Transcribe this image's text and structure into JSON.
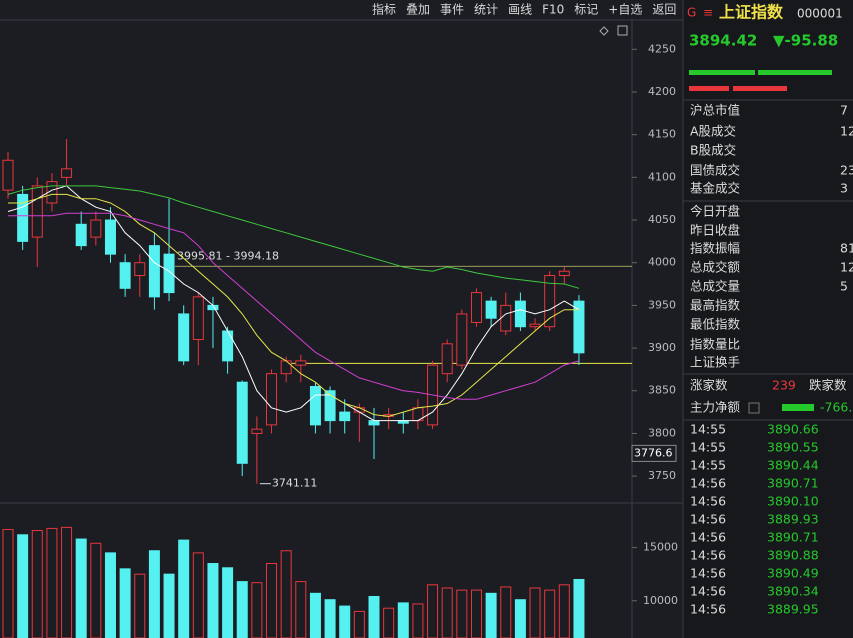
{
  "toolbar": [
    "指标",
    "叠加",
    "事件",
    "统计",
    "画线",
    "F10",
    "标记",
    "+自选",
    "返回"
  ],
  "chart_data": {
    "type": "candlestick",
    "open": [
      4085,
      4080,
      4030,
      4070,
      4100,
      4045,
      4030,
      4050,
      4000,
      3985,
      4020,
      4010,
      3940,
      3910,
      3950,
      3920,
      3860,
      3800,
      3810,
      3870,
      3880,
      3855,
      3850,
      3825,
      3825,
      3815,
      3820,
      3815,
      3815,
      3810,
      3870,
      3880,
      3930,
      3955,
      3920,
      3955,
      3925,
      3925,
      3985,
      3955
    ],
    "close": [
      4120,
      4025,
      4090,
      4095,
      4110,
      4020,
      4050,
      4010,
      3970,
      4000,
      3960,
      3965,
      3885,
      3960,
      3945,
      3885,
      3765,
      3805,
      3870,
      3885,
      3885,
      3810,
      3815,
      3815,
      3830,
      3810,
      3822,
      3812,
      3830,
      3880,
      3905,
      3940,
      3965,
      3935,
      3950,
      3925,
      3928,
      3985,
      3990,
      3894.42
    ],
    "high": [
      4130,
      4090,
      4100,
      4105,
      4145,
      4060,
      4060,
      4065,
      4010,
      4010,
      4035,
      4075,
      3950,
      3965,
      3960,
      3925,
      3862,
      3820,
      3875,
      3890,
      3892,
      3860,
      3855,
      3840,
      3835,
      3830,
      3830,
      3825,
      3840,
      3885,
      3910,
      3945,
      3970,
      3960,
      3965,
      3965,
      3935,
      3990,
      3995.81,
      3962
    ],
    "low": [
      4075,
      4015,
      3995,
      4060,
      4090,
      4015,
      4020,
      4000,
      3960,
      3960,
      3945,
      3955,
      3880,
      3880,
      3900,
      3870,
      3750,
      3741.11,
      3800,
      3860,
      3860,
      3800,
      3800,
      3800,
      3790,
      3770,
      3805,
      3800,
      3805,
      3805,
      3860,
      3875,
      3925,
      3925,
      3915,
      3920,
      3920,
      3920,
      3975,
      3880
    ],
    "volume": [
      16700,
      16200,
      16600,
      16800,
      16900,
      15800,
      15400,
      14500,
      13000,
      12500,
      14700,
      12500,
      15700,
      14500,
      13500,
      13100,
      11800,
      11700,
      13500,
      14700,
      11800,
      10700,
      10100,
      9500,
      9000,
      10400,
      9300,
      9800,
      9700,
      11500,
      11200,
      11000,
      11000,
      10700,
      11300,
      10100,
      11200,
      11000,
      11500,
      12000
    ],
    "colors": {
      "up": "#e8363c",
      "down": "#55f0f0"
    },
    "ylim": [
      3722,
      4282
    ],
    "yticks": [
      3750,
      3800,
      3850,
      3900,
      3950,
      4000,
      4050,
      4100,
      4150,
      4200,
      4250
    ],
    "volume_ylim": [
      6500,
      19000
    ],
    "volume_yticks": [
      10000,
      15000
    ],
    "moving_averages": [
      {
        "color": "#ffffff",
        "values": [
          4060,
          4065,
          4075,
          4085,
          4090,
          4075,
          4065,
          4060,
          4035,
          4020,
          4000,
          3990,
          3975,
          3965,
          3950,
          3920,
          3890,
          3850,
          3830,
          3825,
          3830,
          3845,
          3845,
          3835,
          3825,
          3815,
          3815,
          3815,
          3815,
          3825,
          3845,
          3870,
          3900,
          3925,
          3940,
          3945,
          3940,
          3945,
          3955,
          3945
        ]
      },
      {
        "color": "#e6e64a",
        "values": [
          4070,
          4070,
          4075,
          4080,
          4080,
          4075,
          4075,
          4070,
          4060,
          4045,
          4035,
          4020,
          4005,
          3990,
          3975,
          3960,
          3940,
          3915,
          3895,
          3885,
          3870,
          3860,
          3845,
          3835,
          3830,
          3822,
          3820,
          3825,
          3830,
          3832,
          3835,
          3845,
          3860,
          3875,
          3890,
          3905,
          3920,
          3935,
          3945,
          3945
        ]
      },
      {
        "color": "#d040d0",
        "values": [
          4055,
          4055,
          4055,
          4055,
          4058,
          4058,
          4058,
          4058,
          4055,
          4050,
          4045,
          4040,
          4035,
          4020,
          4000,
          3985,
          3970,
          3955,
          3940,
          3925,
          3910,
          3895,
          3885,
          3875,
          3865,
          3860,
          3855,
          3850,
          3848,
          3845,
          3842,
          3840,
          3840,
          3845,
          3850,
          3855,
          3860,
          3870,
          3880,
          3885
        ]
      },
      {
        "color": "#3ec83e",
        "values": [
          4080,
          4085,
          4088,
          4090,
          4090,
          4090,
          4090,
          4088,
          4086,
          4084,
          4080,
          4076,
          4070,
          4065,
          4060,
          4055,
          4050,
          4045,
          4040,
          4035,
          4030,
          4025,
          4020,
          4015,
          4010,
          4005,
          4000,
          3995,
          3992,
          3990,
          3995,
          3992,
          3988,
          3985,
          3982,
          3980,
          3978,
          3976,
          3975,
          3970
        ]
      }
    ],
    "range_line": {
      "value": 3995.81,
      "label": "3995.81 - 3994.18"
    },
    "low_marker": 3741.11,
    "level_line": 3882,
    "cursor_value": 3776.6
  },
  "quote": {
    "marker": "G",
    "menu": "≡",
    "name": "上证指数",
    "code": "000001",
    "price": "3894.42",
    "change": "▼-95.88"
  },
  "stats": [
    {
      "label": "沪总市值",
      "value": "7"
    },
    {
      "label": "A股成交",
      "value": "12"
    },
    {
      "label": "B股成交"
    },
    {
      "label": "国债成交",
      "value": "23"
    },
    {
      "label": "基金成交",
      "value": "3"
    },
    {
      "label": "今日开盘"
    },
    {
      "label": "昨日收盘"
    },
    {
      "label": "指数振幅",
      "value": "81."
    },
    {
      "label": "总成交额",
      "value": "12"
    },
    {
      "label": "总成交量",
      "value": "5"
    },
    {
      "label": "最高指数"
    },
    {
      "label": "最低指数"
    },
    {
      "label": "指数量比"
    },
    {
      "label": "上证换手"
    }
  ],
  "breadth": {
    "up_label": "涨家数",
    "up_count": 239,
    "down_label": "跌家数"
  },
  "main_flow": {
    "label": "主力净额",
    "value": "-766."
  },
  "trades": [
    {
      "time": "14:55",
      "price": "3890.66"
    },
    {
      "time": "14:55",
      "price": "3890.55"
    },
    {
      "time": "14:55",
      "price": "3890.44"
    },
    {
      "time": "14:56",
      "price": "3890.71"
    },
    {
      "time": "14:56",
      "price": "3890.10"
    },
    {
      "time": "14:56",
      "price": "3889.93"
    },
    {
      "time": "14:56",
      "price": "3890.71"
    },
    {
      "time": "14:56",
      "price": "3890.88"
    },
    {
      "time": "14:56",
      "price": "3890.49"
    },
    {
      "time": "14:56",
      "price": "3890.34"
    },
    {
      "time": "14:56",
      "price": "3889.95"
    }
  ]
}
